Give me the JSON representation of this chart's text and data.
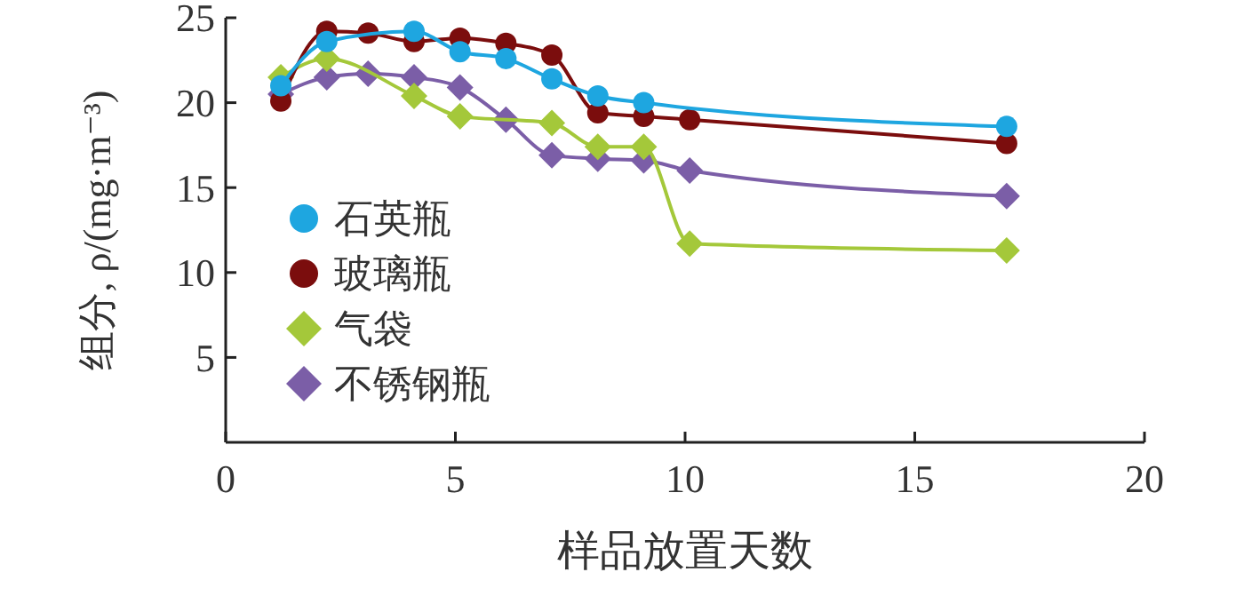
{
  "chart_data": {
    "type": "line",
    "xlabel": "样品放置天数",
    "ylabel": "组分, ρ/(mg·m⁻³)",
    "xlim": [
      0,
      20
    ],
    "xticks": [
      0,
      5,
      10,
      15,
      20
    ],
    "ylim": [
      0,
      25
    ],
    "yticks": [
      5,
      10,
      15,
      20,
      25
    ],
    "legend": "left",
    "grid": false,
    "series": [
      {
        "name": "石英瓶",
        "color": "#1ea6e0",
        "marker": "circle",
        "x": [
          1.2,
          2.2,
          4.1,
          5.1,
          6.1,
          7.1,
          8.1,
          9.1,
          17
        ],
        "values": [
          21.0,
          23.6,
          24.2,
          23.0,
          22.6,
          21.4,
          20.4,
          20.0,
          18.6
        ]
      },
      {
        "name": "玻璃瓶",
        "color": "#7b0d0d",
        "marker": "circle",
        "x": [
          1.2,
          2.2,
          3.1,
          4.1,
          5.1,
          6.1,
          7.1,
          8.1,
          9.1,
          10.1,
          17
        ],
        "values": [
          20.1,
          24.2,
          24.1,
          23.6,
          23.8,
          23.5,
          22.8,
          19.4,
          19.2,
          19.0,
          17.6
        ]
      },
      {
        "name": "气袋",
        "color": "#a4c83a",
        "marker": "diamond",
        "x": [
          1.2,
          2.2,
          4.1,
          5.1,
          7.1,
          8.1,
          9.1,
          10.1,
          17
        ],
        "values": [
          21.5,
          22.6,
          20.4,
          19.2,
          18.8,
          17.4,
          17.4,
          11.7,
          11.3
        ]
      },
      {
        "name": "不锈钢瓶",
        "color": "#7b5ea7",
        "marker": "diamond",
        "x": [
          1.2,
          2.2,
          3.1,
          4.1,
          5.1,
          6.1,
          7.1,
          8.1,
          9.1,
          10.1,
          17
        ],
        "values": [
          20.5,
          21.5,
          21.7,
          21.5,
          20.9,
          19.0,
          16.9,
          16.7,
          16.6,
          16.0,
          14.5
        ]
      }
    ]
  }
}
